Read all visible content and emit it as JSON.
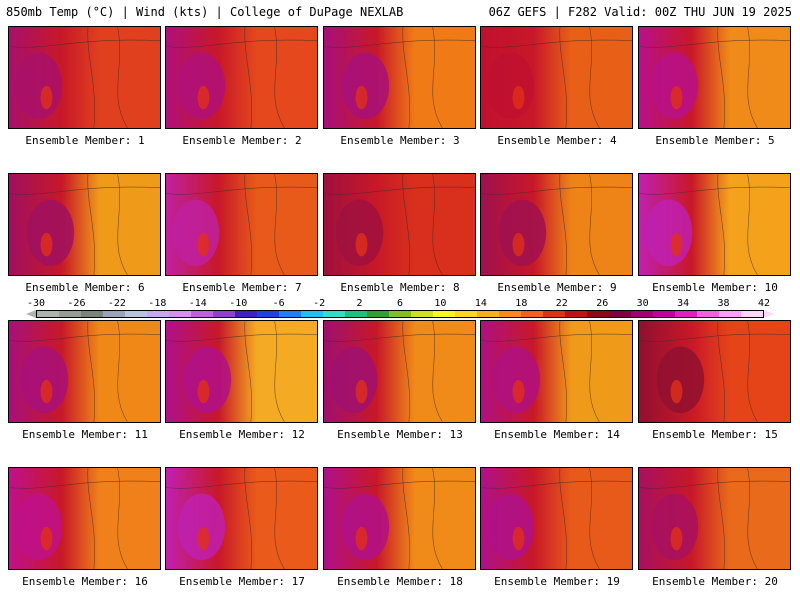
{
  "header": {
    "left": "850mb Temp (°C) | Wind (kts) | College of DuPage NEXLAB",
    "right": "06Z GEFS | F282 Valid: 00Z THU JUN 19 2025"
  },
  "panels": [
    {
      "label": "Ensemble Member: 1",
      "base": "#e0401e",
      "hot": "#a8106a"
    },
    {
      "label": "Ensemble Member: 2",
      "base": "#e4481c",
      "hot": "#b0107a"
    },
    {
      "label": "Ensemble Member: 3",
      "base": "#f07a16",
      "hot": "#a8107a"
    },
    {
      "label": "Ensemble Member: 4",
      "base": "#e86018",
      "hot": "#c01030"
    },
    {
      "label": "Ensemble Member: 5",
      "base": "#f08a18",
      "hot": "#b8108a"
    },
    {
      "label": "Ensemble Member: 6",
      "base": "#f09a1a",
      "hot": "#a01060"
    },
    {
      "label": "Ensemble Member: 7",
      "base": "#e85a1a",
      "hot": "#c020a0"
    },
    {
      "label": "Ensemble Member: 8",
      "base": "#d8301c",
      "hot": "#a01040"
    },
    {
      "label": "Ensemble Member: 9",
      "base": "#ee8418",
      "hot": "#a01050"
    },
    {
      "label": "Ensemble Member: 10",
      "base": "#f4a21c",
      "hot": "#c020b0"
    },
    {
      "label": "Ensemble Member: 11",
      "base": "#f08818",
      "hot": "#a8107a"
    },
    {
      "label": "Ensemble Member: 12",
      "base": "#f4aa22",
      "hot": "#b0108a"
    },
    {
      "label": "Ensemble Member: 13",
      "base": "#f08a18",
      "hot": "#a01070"
    },
    {
      "label": "Ensemble Member: 14",
      "base": "#f09a1a",
      "hot": "#b01080"
    },
    {
      "label": "Ensemble Member: 15",
      "base": "#e44418",
      "hot": "#901030"
    },
    {
      "label": "Ensemble Member: 16",
      "base": "#f0801a",
      "hot": "#c0108a"
    },
    {
      "label": "Ensemble Member: 17",
      "base": "#ea5a1a",
      "hot": "#c020b0"
    },
    {
      "label": "Ensemble Member: 18",
      "base": "#f08a18",
      "hot": "#b0108a"
    },
    {
      "label": "Ensemble Member: 19",
      "base": "#e85a1a",
      "hot": "#b0108a"
    },
    {
      "label": "Ensemble Member: 20",
      "base": "#e86a1a",
      "hot": "#a81060"
    }
  ],
  "colorbar": {
    "ticks": [
      "-30",
      "-26",
      "-22",
      "-18",
      "-14",
      "-10",
      "-6",
      "-2",
      "2",
      "6",
      "10",
      "14",
      "18",
      "22",
      "26",
      "30",
      "34",
      "38",
      "42"
    ],
    "colors": [
      "#aeb4ad",
      "#959c94",
      "#7c837b",
      "#9aa3b8",
      "#b8c4dc",
      "#c8a8e8",
      "#d890f0",
      "#c060e0",
      "#9040d0",
      "#4020c0",
      "#2040e0",
      "#2080f0",
      "#20c0f0",
      "#30e0c0",
      "#20c080",
      "#30a030",
      "#80c020",
      "#d0e020",
      "#f8f820",
      "#f8d820",
      "#f8b020",
      "#f88820",
      "#f06020",
      "#e03018",
      "#c01018",
      "#900818",
      "#800040",
      "#a00070",
      "#c000a0",
      "#e020c0",
      "#f060e0",
      "#ffa0f8",
      "#ffd8ff"
    ]
  }
}
